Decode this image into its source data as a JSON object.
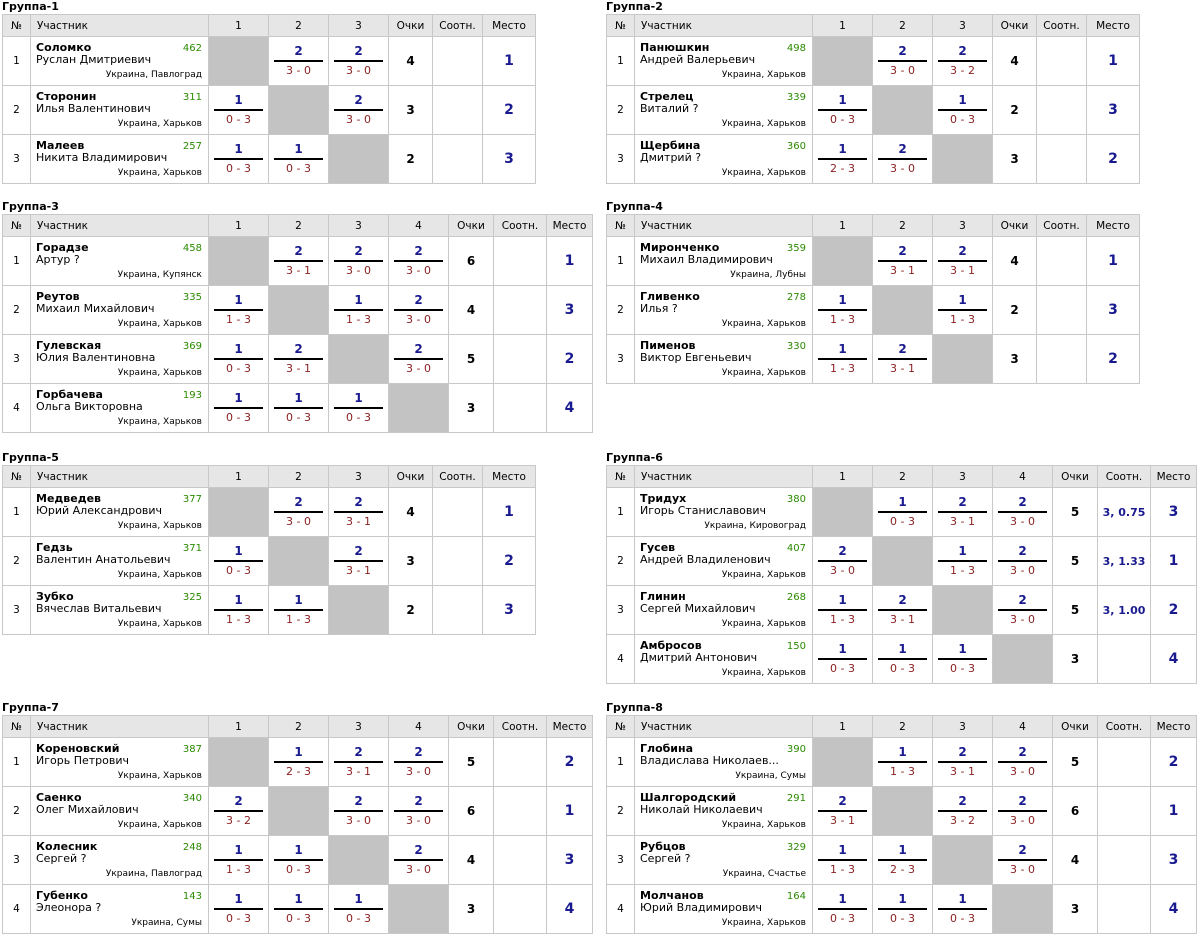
{
  "headers": {
    "no": "№",
    "player": "Участник",
    "points": "Очки",
    "ratio": "Соотн.",
    "place": "Место"
  },
  "colors": {
    "rating": "#2a8a00",
    "wins": "#1a1a90",
    "score": "#8a1e1e",
    "header_bg": "#e6e6e6",
    "self_cell": "#c3c3c3"
  },
  "groups": [
    {
      "title": "Группа-1",
      "cols": [
        "1",
        "2",
        "3"
      ],
      "players": [
        {
          "no": "1",
          "name": "Соломко",
          "first": "Руслан Дмитриевич",
          "rating": "462",
          "loc": "Украина, Павлоград",
          "res": [
            null,
            [
              "2",
              "3 - 0"
            ],
            [
              "2",
              "3 - 0"
            ]
          ],
          "pts": "4",
          "ratio": "",
          "place": "1"
        },
        {
          "no": "2",
          "name": "Сторонин",
          "first": "Илья Валентинович",
          "rating": "311",
          "loc": "Украина, Харьков",
          "res": [
            [
              "1",
              "0 - 3"
            ],
            null,
            [
              "2",
              "3 - 0"
            ]
          ],
          "pts": "3",
          "ratio": "",
          "place": "2"
        },
        {
          "no": "3",
          "name": "Малеев",
          "first": "Никита Владимирович",
          "rating": "257",
          "loc": "Украина, Харьков",
          "res": [
            [
              "1",
              "0 - 3"
            ],
            [
              "1",
              "0 - 3"
            ],
            null
          ],
          "pts": "2",
          "ratio": "",
          "place": "3"
        }
      ]
    },
    {
      "title": "Группа-2",
      "cols": [
        "1",
        "2",
        "3"
      ],
      "players": [
        {
          "no": "1",
          "name": "Панюшкин",
          "first": "Андрей Валерьевич",
          "rating": "498",
          "loc": "Украина, Харьков",
          "res": [
            null,
            [
              "2",
              "3 - 0"
            ],
            [
              "2",
              "3 - 2"
            ]
          ],
          "pts": "4",
          "ratio": "",
          "place": "1"
        },
        {
          "no": "2",
          "name": "Стрелец",
          "first": "Виталий ?",
          "rating": "339",
          "loc": "Украина, Харьков",
          "res": [
            [
              "1",
              "0 - 3"
            ],
            null,
            [
              "1",
              "0 - 3"
            ]
          ],
          "pts": "2",
          "ratio": "",
          "place": "3"
        },
        {
          "no": "3",
          "name": "Щербина",
          "first": "Дмитрий ?",
          "rating": "360",
          "loc": "Украина, Харьков",
          "res": [
            [
              "1",
              "2 - 3"
            ],
            [
              "2",
              "3 - 0"
            ],
            null
          ],
          "pts": "3",
          "ratio": "",
          "place": "2"
        }
      ]
    },
    {
      "title": "Группа-3",
      "cols": [
        "1",
        "2",
        "3",
        "4"
      ],
      "players": [
        {
          "no": "1",
          "name": "Горадзе",
          "first": "Артур ?",
          "rating": "458",
          "loc": "Украина, Купянск",
          "res": [
            null,
            [
              "2",
              "3 - 1"
            ],
            [
              "2",
              "3 - 0"
            ],
            [
              "2",
              "3 - 0"
            ]
          ],
          "pts": "6",
          "ratio": "",
          "place": "1"
        },
        {
          "no": "2",
          "name": "Реутов",
          "first": "Михаил Михайлович",
          "rating": "335",
          "loc": "Украина, Харьков",
          "res": [
            [
              "1",
              "1 - 3"
            ],
            null,
            [
              "1",
              "1 - 3"
            ],
            [
              "2",
              "3 - 0"
            ]
          ],
          "pts": "4",
          "ratio": "",
          "place": "3"
        },
        {
          "no": "3",
          "name": "Гулевская",
          "first": "Юлия Валентиновна",
          "rating": "369",
          "loc": "Украина, Харьков",
          "res": [
            [
              "1",
              "0 - 3"
            ],
            [
              "2",
              "3 - 1"
            ],
            null,
            [
              "2",
              "3 - 0"
            ]
          ],
          "pts": "5",
          "ratio": "",
          "place": "2"
        },
        {
          "no": "4",
          "name": "Горбачева",
          "first": "Ольга Викторовна",
          "rating": "193",
          "loc": "Украина, Харьков",
          "res": [
            [
              "1",
              "0 - 3"
            ],
            [
              "1",
              "0 - 3"
            ],
            [
              "1",
              "0 - 3"
            ],
            null
          ],
          "pts": "3",
          "ratio": "",
          "place": "4"
        }
      ]
    },
    {
      "title": "Группа-4",
      "cols": [
        "1",
        "2",
        "3"
      ],
      "players": [
        {
          "no": "1",
          "name": "Миронченко",
          "first": "Михаил Владимирович",
          "rating": "359",
          "loc": "Украина, Лубны",
          "res": [
            null,
            [
              "2",
              "3 - 1"
            ],
            [
              "2",
              "3 - 1"
            ]
          ],
          "pts": "4",
          "ratio": "",
          "place": "1"
        },
        {
          "no": "2",
          "name": "Гливенко",
          "first": "Илья ?",
          "rating": "278",
          "loc": "Украина, Харьков",
          "res": [
            [
              "1",
              "1 - 3"
            ],
            null,
            [
              "1",
              "1 - 3"
            ]
          ],
          "pts": "2",
          "ratio": "",
          "place": "3"
        },
        {
          "no": "3",
          "name": "Пименов",
          "first": "Виктор Евгеньевич",
          "rating": "330",
          "loc": "Украина, Харьков",
          "res": [
            [
              "1",
              "1 - 3"
            ],
            [
              "2",
              "3 - 1"
            ],
            null
          ],
          "pts": "3",
          "ratio": "",
          "place": "2"
        }
      ]
    },
    {
      "title": "Группа-5",
      "cols": [
        "1",
        "2",
        "3"
      ],
      "players": [
        {
          "no": "1",
          "name": "Медведев",
          "first": "Юрий Александрович",
          "rating": "377",
          "loc": "Украина, Харьков",
          "res": [
            null,
            [
              "2",
              "3 - 0"
            ],
            [
              "2",
              "3 - 1"
            ]
          ],
          "pts": "4",
          "ratio": "",
          "place": "1"
        },
        {
          "no": "2",
          "name": "Гедзь",
          "first": "Валентин Анатольевич",
          "rating": "371",
          "loc": "Украина, Харьков",
          "res": [
            [
              "1",
              "0 - 3"
            ],
            null,
            [
              "2",
              "3 - 1"
            ]
          ],
          "pts": "3",
          "ratio": "",
          "place": "2"
        },
        {
          "no": "3",
          "name": "Зубко",
          "first": "Вячеслав Витальевич",
          "rating": "325",
          "loc": "Украина, Харьков",
          "res": [
            [
              "1",
              "1 - 3"
            ],
            [
              "1",
              "1 - 3"
            ],
            null
          ],
          "pts": "2",
          "ratio": "",
          "place": "3"
        }
      ]
    },
    {
      "title": "Группа-6",
      "cols": [
        "1",
        "2",
        "3",
        "4"
      ],
      "players": [
        {
          "no": "1",
          "name": "Тридух",
          "first": "Игорь Станиславович",
          "rating": "380",
          "loc": "Украина, Кировоград",
          "res": [
            null,
            [
              "1",
              "0 - 3"
            ],
            [
              "2",
              "3 - 1"
            ],
            [
              "2",
              "3 - 0"
            ]
          ],
          "pts": "5",
          "ratio": "3, 0.75",
          "place": "3"
        },
        {
          "no": "2",
          "name": "Гусев",
          "first": "Андрей Владиленович",
          "rating": "407",
          "loc": "Украина, Харьков",
          "res": [
            [
              "2",
              "3 - 0"
            ],
            null,
            [
              "1",
              "1 - 3"
            ],
            [
              "2",
              "3 - 0"
            ]
          ],
          "pts": "5",
          "ratio": "3, 1.33",
          "place": "1"
        },
        {
          "no": "3",
          "name": "Глинин",
          "first": "Сергей Михайлович",
          "rating": "268",
          "loc": "Украина, Харьков",
          "res": [
            [
              "1",
              "1 - 3"
            ],
            [
              "2",
              "3 - 1"
            ],
            null,
            [
              "2",
              "3 - 0"
            ]
          ],
          "pts": "5",
          "ratio": "3, 1.00",
          "place": "2"
        },
        {
          "no": "4",
          "name": "Амбросов",
          "first": "Дмитрий Антонович",
          "rating": "150",
          "loc": "Украина, Харьков",
          "res": [
            [
              "1",
              "0 - 3"
            ],
            [
              "1",
              "0 - 3"
            ],
            [
              "1",
              "0 - 3"
            ],
            null
          ],
          "pts": "3",
          "ratio": "",
          "place": "4"
        }
      ]
    },
    {
      "title": "Группа-7",
      "cols": [
        "1",
        "2",
        "3",
        "4"
      ],
      "players": [
        {
          "no": "1",
          "name": "Кореновский",
          "first": "Игорь Петрович",
          "rating": "387",
          "loc": "Украина, Харьков",
          "res": [
            null,
            [
              "1",
              "2 - 3"
            ],
            [
              "2",
              "3 - 1"
            ],
            [
              "2",
              "3 - 0"
            ]
          ],
          "pts": "5",
          "ratio": "",
          "place": "2"
        },
        {
          "no": "2",
          "name": "Саенко",
          "first": "Олег Михайлович",
          "rating": "340",
          "loc": "Украина, Харьков",
          "res": [
            [
              "2",
              "3 - 2"
            ],
            null,
            [
              "2",
              "3 - 0"
            ],
            [
              "2",
              "3 - 0"
            ]
          ],
          "pts": "6",
          "ratio": "",
          "place": "1"
        },
        {
          "no": "3",
          "name": "Колесник",
          "first": "Сергей ?",
          "rating": "248",
          "loc": "Украина, Павлоград",
          "res": [
            [
              "1",
              "1 - 3"
            ],
            [
              "1",
              "0 - 3"
            ],
            null,
            [
              "2",
              "3 - 0"
            ]
          ],
          "pts": "4",
          "ratio": "",
          "place": "3"
        },
        {
          "no": "4",
          "name": "Губенко",
          "first": "Элеонора ?",
          "rating": "143",
          "loc": "Украина, Сумы",
          "res": [
            [
              "1",
              "0 - 3"
            ],
            [
              "1",
              "0 - 3"
            ],
            [
              "1",
              "0 - 3"
            ],
            null
          ],
          "pts": "3",
          "ratio": "",
          "place": "4"
        }
      ]
    },
    {
      "title": "Группа-8",
      "cols": [
        "1",
        "2",
        "3",
        "4"
      ],
      "players": [
        {
          "no": "1",
          "name": "Глобина",
          "first": "Владислава Николаев...",
          "rating": "390",
          "loc": "Украина, Сумы",
          "res": [
            null,
            [
              "1",
              "1 - 3"
            ],
            [
              "2",
              "3 - 1"
            ],
            [
              "2",
              "3 - 0"
            ]
          ],
          "pts": "5",
          "ratio": "",
          "place": "2"
        },
        {
          "no": "2",
          "name": "Шалгородский",
          "first": "Николай Николаевич",
          "rating": "291",
          "loc": "Украина, Харьков",
          "res": [
            [
              "2",
              "3 - 1"
            ],
            null,
            [
              "2",
              "3 - 2"
            ],
            [
              "2",
              "3 - 0"
            ]
          ],
          "pts": "6",
          "ratio": "",
          "place": "1"
        },
        {
          "no": "3",
          "name": "Рубцов",
          "first": "Сергей ?",
          "rating": "329",
          "loc": "Украина, Счастье",
          "res": [
            [
              "1",
              "1 - 3"
            ],
            [
              "1",
              "2 - 3"
            ],
            null,
            [
              "2",
              "3 - 0"
            ]
          ],
          "pts": "4",
          "ratio": "",
          "place": "3"
        },
        {
          "no": "4",
          "name": "Молчанов",
          "first": "Юрий Владимирович",
          "rating": "164",
          "loc": "Украина, Харьков",
          "res": [
            [
              "1",
              "0 - 3"
            ],
            [
              "1",
              "0 - 3"
            ],
            [
              "1",
              "0 - 3"
            ],
            null
          ],
          "pts": "3",
          "ratio": "",
          "place": "4"
        }
      ]
    }
  ]
}
